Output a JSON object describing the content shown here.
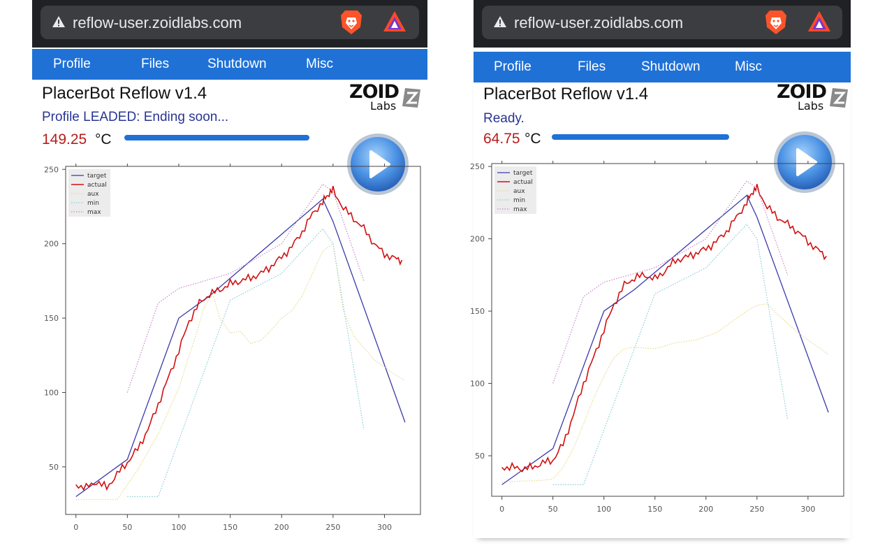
{
  "screens": [
    {
      "url": "reflow-user.zoidlabs.com",
      "nav": [
        "Profile",
        "Files",
        "Shutdown",
        "Misc"
      ],
      "title": "PlacerBot Reflow v1.4",
      "logo": {
        "word": "ZOID",
        "sub": "Labs"
      },
      "status": "Profile LEADED: Ending soon...",
      "temperature": "149.25",
      "unit": "°C",
      "temperature_bar_fill": 1.0,
      "icons": [
        "warning-icon",
        "brave-lion-icon",
        "brave-rewards-icon",
        "play-icon",
        "zoid-cube-icon"
      ],
      "colors": {
        "nav": "#1f71d6",
        "status": "#283593",
        "temperature": "#b71c1c",
        "target": "#3a3aa8",
        "actual": "#d01010",
        "aux": "#e4d98a",
        "min": "#86cbd2",
        "max": "#c786c7"
      },
      "chart_data": {
        "type": "line",
        "x_ticks": [
          "0",
          "50",
          "100",
          "150",
          "200",
          "250",
          "300"
        ],
        "y_ticks": [
          "50",
          "100",
          "150",
          "200",
          "250"
        ],
        "xlim": [
          -10,
          335
        ],
        "ylim": [
          18,
          252
        ],
        "legend": "top-left",
        "series": [
          {
            "name": "target",
            "points": [
              [
                0,
                30
              ],
              [
                50,
                55
              ],
              [
                100,
                150
              ],
              [
                130,
                165
              ],
              [
                240,
                230
              ],
              [
                250,
                215
              ],
              [
                320,
                80
              ]
            ]
          },
          {
            "name": "actual",
            "points": [
              [
                0,
                38
              ],
              [
                10,
                36
              ],
              [
                20,
                40
              ],
              [
                30,
                36
              ],
              [
                40,
                45
              ],
              [
                50,
                53
              ],
              [
                60,
                62
              ],
              [
                70,
                75
              ],
              [
                80,
                92
              ],
              [
                90,
                110
              ],
              [
                100,
                128
              ],
              [
                110,
                148
              ],
              [
                120,
                160
              ],
              [
                130,
                166
              ],
              [
                140,
                169
              ],
              [
                150,
                173
              ],
              [
                160,
                175
              ],
              [
                170,
                177
              ],
              [
                180,
                180
              ],
              [
                190,
                185
              ],
              [
                200,
                191
              ],
              [
                210,
                198
              ],
              [
                220,
                208
              ],
              [
                230,
                220
              ],
              [
                240,
                228
              ],
              [
                245,
                233
              ],
              [
                250,
                236
              ],
              [
                260,
                224
              ],
              [
                270,
                217
              ],
              [
                280,
                210
              ],
              [
                290,
                200
              ],
              [
                300,
                193
              ],
              [
                310,
                190
              ],
              [
                317,
                189
              ]
            ]
          },
          {
            "name": "aux",
            "points": [
              [
                0,
                28
              ],
              [
                40,
                28
              ],
              [
                60,
                48
              ],
              [
                80,
                72
              ],
              [
                100,
                103
              ],
              [
                115,
                135
              ],
              [
                125,
                158
              ],
              [
                133,
                166
              ],
              [
                140,
                150
              ],
              [
                150,
                140
              ],
              [
                160,
                141
              ],
              [
                170,
                133
              ],
              [
                180,
                135
              ],
              [
                190,
                142
              ],
              [
                200,
                150
              ],
              [
                210,
                155
              ],
              [
                220,
                165
              ],
              [
                230,
                180
              ],
              [
                240,
                195
              ],
              [
                250,
                200
              ],
              [
                260,
                155
              ],
              [
                270,
                138
              ],
              [
                290,
                122
              ],
              [
                310,
                112
              ],
              [
                320,
                108
              ]
            ]
          },
          {
            "name": "min",
            "points": [
              [
                50,
                30
              ],
              [
                80,
                30
              ],
              [
                150,
                162
              ],
              [
                200,
                180
              ],
              [
                240,
                210
              ],
              [
                250,
                200
              ],
              [
                280,
                75
              ]
            ]
          },
          {
            "name": "max",
            "points": [
              [
                50,
                100
              ],
              [
                80,
                160
              ],
              [
                100,
                170
              ],
              [
                150,
                180
              ],
              [
                200,
                200
              ],
              [
                240,
                240
              ],
              [
                250,
                235
              ],
              [
                280,
                175
              ]
            ]
          }
        ]
      }
    },
    {
      "url": "reflow-user.zoidlabs.com",
      "nav": [
        "Profile",
        "Files",
        "Shutdown",
        "Misc"
      ],
      "title": "PlacerBot Reflow v1.4",
      "logo": {
        "word": "ZOID",
        "sub": "Labs"
      },
      "status": "Ready.",
      "temperature": "64.75",
      "unit": "°C",
      "temperature_bar_fill": 1.0,
      "icons": [
        "warning-icon",
        "brave-lion-icon",
        "brave-rewards-icon",
        "play-icon",
        "zoid-cube-icon"
      ],
      "colors": {
        "nav": "#1f71d6",
        "status": "#283593",
        "temperature": "#b71c1c",
        "target": "#3a3aa8",
        "actual": "#d01010",
        "aux": "#e4d98a",
        "min": "#86cbd2",
        "max": "#c786c7"
      },
      "chart_data": {
        "type": "line",
        "x_ticks": [
          "0",
          "50",
          "100",
          "150",
          "200",
          "250",
          "300"
        ],
        "y_ticks": [
          "50",
          "100",
          "150",
          "200",
          "250"
        ],
        "xlim": [
          -10,
          335
        ],
        "ylim": [
          22,
          252
        ],
        "legend": "top-left",
        "series": [
          {
            "name": "target",
            "points": [
              [
                0,
                30
              ],
              [
                50,
                55
              ],
              [
                100,
                150
              ],
              [
                130,
                165
              ],
              [
                240,
                230
              ],
              [
                250,
                215
              ],
              [
                320,
                80
              ]
            ]
          },
          {
            "name": "actual",
            "points": [
              [
                0,
                42
              ],
              [
                10,
                42
              ],
              [
                20,
                41
              ],
              [
                30,
                42
              ],
              [
                40,
                45
              ],
              [
                50,
                47
              ],
              [
                60,
                58
              ],
              [
                70,
                78
              ],
              [
                80,
                100
              ],
              [
                90,
                118
              ],
              [
                100,
                137
              ],
              [
                110,
                155
              ],
              [
                120,
                168
              ],
              [
                130,
                173
              ],
              [
                140,
                175
              ],
              [
                150,
                172
              ],
              [
                160,
                178
              ],
              [
                170,
                185
              ],
              [
                180,
                187
              ],
              [
                190,
                190
              ],
              [
                200,
                193
              ],
              [
                210,
                198
              ],
              [
                220,
                205
              ],
              [
                230,
                215
              ],
              [
                240,
                225
              ],
              [
                245,
                232
              ],
              [
                250,
                235
              ],
              [
                260,
                222
              ],
              [
                270,
                215
              ],
              [
                280,
                210
              ],
              [
                290,
                205
              ],
              [
                300,
                198
              ],
              [
                310,
                192
              ],
              [
                318,
                188
              ]
            ]
          },
          {
            "name": "aux",
            "points": [
              [
                0,
                32
              ],
              [
                40,
                33
              ],
              [
                50,
                34
              ],
              [
                60,
                42
              ],
              [
                70,
                55
              ],
              [
                80,
                72
              ],
              [
                90,
                90
              ],
              [
                100,
                105
              ],
              [
                110,
                118
              ],
              [
                120,
                124
              ],
              [
                130,
                125
              ],
              [
                150,
                124
              ],
              [
                170,
                128
              ],
              [
                190,
                130
              ],
              [
                210,
                135
              ],
              [
                230,
                145
              ],
              [
                240,
                150
              ],
              [
                250,
                154
              ],
              [
                260,
                155
              ],
              [
                270,
                148
              ],
              [
                290,
                135
              ],
              [
                310,
                125
              ],
              [
                320,
                120
              ]
            ]
          },
          {
            "name": "min",
            "points": [
              [
                50,
                30
              ],
              [
                80,
                30
              ],
              [
                150,
                162
              ],
              [
                200,
                180
              ],
              [
                240,
                210
              ],
              [
                250,
                200
              ],
              [
                280,
                75
              ]
            ]
          },
          {
            "name": "max",
            "points": [
              [
                50,
                100
              ],
              [
                80,
                160
              ],
              [
                100,
                170
              ],
              [
                150,
                180
              ],
              [
                200,
                200
              ],
              [
                240,
                240
              ],
              [
                250,
                235
              ],
              [
                280,
                175
              ]
            ]
          }
        ]
      }
    }
  ]
}
